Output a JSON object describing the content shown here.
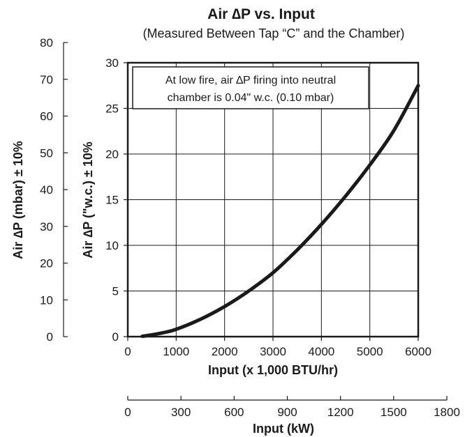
{
  "chart_data": {
    "type": "line",
    "title": "Air ∆P vs. Input",
    "subtitle": "(Measured Between Tap “C” and the Chamber)",
    "annotation": [
      "At low fire, air ∆P firing into neutral",
      "chamber is 0.04\" w.c. (0.10 mbar)"
    ],
    "grid": true,
    "axes": {
      "x_primary": {
        "label": "Input (x 1,000 BTU/hr)",
        "range": [
          0,
          6000
        ],
        "ticks": [
          "0",
          "1000",
          "2000",
          "3000",
          "4000",
          "5000",
          "6000"
        ]
      },
      "x_secondary": {
        "label": "Input (kW)",
        "range": [
          0,
          1800
        ],
        "ticks": [
          "0",
          "300",
          "600",
          "900",
          "1200",
          "1500",
          "1800"
        ]
      },
      "y_primary": {
        "label": "Air ∆P (\"w.c.) ± 10%",
        "range": [
          0,
          30
        ],
        "ticks": [
          "0",
          "5",
          "10",
          "15",
          "20",
          "25",
          "30"
        ]
      },
      "y_secondary": {
        "label": "Air ∆P (mbar) ± 10%",
        "range": [
          0,
          80
        ],
        "ticks": [
          "0",
          "10",
          "20",
          "30",
          "40",
          "50",
          "60",
          "70",
          "80"
        ]
      }
    },
    "series": [
      {
        "x": [
          300,
          500,
          750,
          1000,
          1500,
          2000,
          2500,
          3000,
          3500,
          4000,
          4500,
          5000,
          5500,
          6000
        ],
        "y": [
          0.04,
          0.2,
          0.45,
          0.8,
          1.9,
          3.3,
          5.0,
          7.0,
          9.5,
          12.3,
          15.4,
          18.8,
          22.6,
          27.5
        ]
      }
    ],
    "colors": {
      "line": "#1a1a1a",
      "grid": "#1a1a1a"
    }
  }
}
